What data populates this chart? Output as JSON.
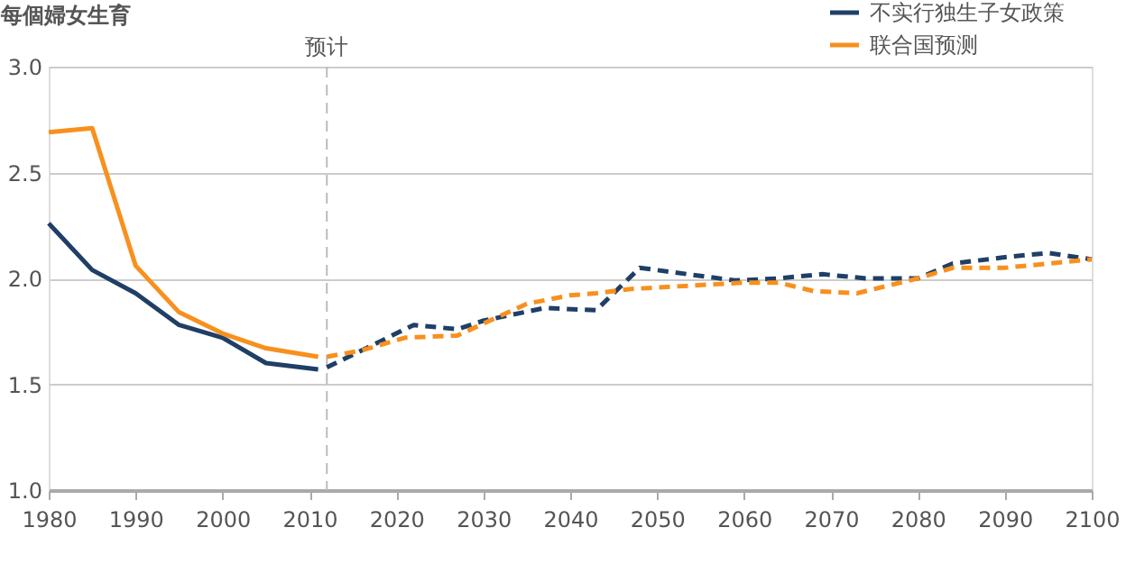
{
  "chart_data": {
    "type": "line",
    "ylabel": "每個婦女生育",
    "xlim": [
      1980,
      2100
    ],
    "xticks": [
      1980,
      1990,
      2000,
      2010,
      2020,
      2030,
      2040,
      2050,
      2060,
      2070,
      2080,
      2090,
      2100
    ],
    "ylim": [
      1.0,
      3.0
    ],
    "yticks": [
      {
        "value": 1.0,
        "label": "1.0"
      },
      {
        "value": 1.5,
        "label": "1.5"
      },
      {
        "value": 2.0,
        "label": "2.0"
      },
      {
        "value": 2.5,
        "label": "2.5"
      },
      {
        "value": 3.0,
        "label": "3.0"
      }
    ],
    "grid": "y",
    "legend": "top right",
    "marker": "none",
    "ref_lines": [
      {
        "axis": "x",
        "value": 2012,
        "label": "预计",
        "color": "#bbbbbb",
        "line_style": "dashed"
      }
    ],
    "series": [
      {
        "name": "不实行独生子女政策",
        "color": "#1f3f66",
        "line_style": "solid",
        "x": [
          1980,
          1985,
          1990,
          1995,
          2000,
          2005,
          2011
        ],
        "values": [
          2.26,
          2.04,
          1.93,
          1.78,
          1.72,
          1.6,
          1.57
        ]
      },
      {
        "name": "联合国预测",
        "color": "#f7901e",
        "line_style": "solid",
        "x": [
          1980,
          1985,
          1990,
          1995,
          2000,
          2005,
          2011
        ],
        "values": [
          2.69,
          2.71,
          2.06,
          1.84,
          1.74,
          1.67,
          1.63
        ]
      },
      {
        "color": "#1f3f66",
        "line_style": "dashed",
        "x": [
          2012,
          2022,
          2027,
          2030,
          2037,
          2043,
          2048,
          2059,
          2064,
          2069,
          2074,
          2080,
          2084,
          2090,
          2095,
          2100
        ],
        "values": [
          1.58,
          1.78,
          1.76,
          1.8,
          1.86,
          1.85,
          2.05,
          1.99,
          2.0,
          2.02,
          2.0,
          2.0,
          2.07,
          2.1,
          2.12,
          2.09
        ]
      },
      {
        "color": "#f7901e",
        "line_style": "dashed",
        "x": [
          2012,
          2016,
          2021,
          2027,
          2035,
          2040,
          2043,
          2047,
          2060,
          2064,
          2068,
          2073,
          2080,
          2084,
          2090,
          2095,
          2100
        ],
        "values": [
          1.63,
          1.66,
          1.72,
          1.73,
          1.88,
          1.92,
          1.93,
          1.95,
          1.98,
          1.98,
          1.94,
          1.93,
          2.0,
          2.05,
          2.05,
          2.07,
          2.09
        ]
      }
    ]
  }
}
